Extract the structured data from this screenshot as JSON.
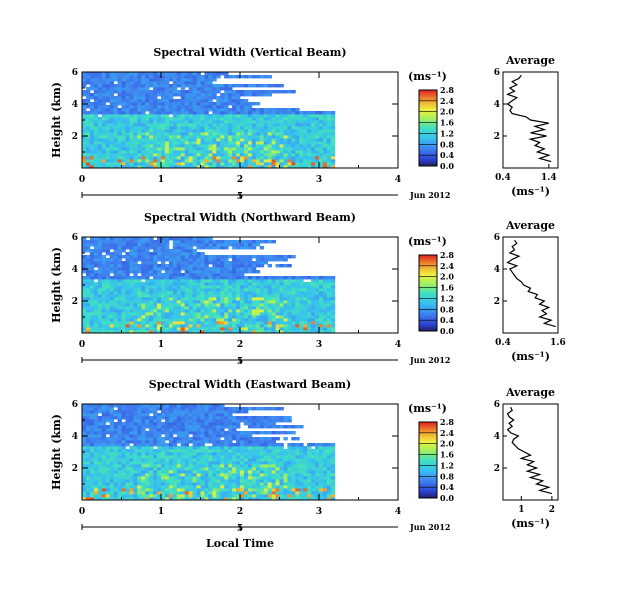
{
  "figure": {
    "x_axis_label": "Local Time",
    "date_label": "Jun 2012",
    "day_label": "5",
    "unit_label": "(ms⁻¹)",
    "average_title": "Average"
  },
  "chart_data": [
    {
      "type": "heatmap",
      "title": "Spectral Width (Vertical Beam)",
      "ylabel": "Height (km)",
      "xlabel": "Local Time",
      "xlim": [
        0,
        4
      ],
      "ylim": [
        0,
        6
      ],
      "x_ticks": [
        "0",
        "1",
        "2",
        "3",
        "4"
      ],
      "y_ticks": [
        "2",
        "4",
        "6"
      ],
      "colorbar": {
        "label": "(ms⁻¹)",
        "ticks": [
          "2.8",
          "2.4",
          "2.0",
          "1.6",
          "1.2",
          "0.8",
          "0.4",
          "0.0"
        ],
        "range": [
          0,
          2.8
        ]
      },
      "data_extent_hours": [
        0,
        3.2
      ],
      "profile": {
        "title": "Average",
        "xlabel": "(ms⁻¹)",
        "x_ticks": [
          "0.4",
          "1.4"
        ],
        "xlim": [
          0.4,
          1.6
        ],
        "y_ticks": [
          "2",
          "4",
          "6"
        ],
        "ylim": [
          0,
          6
        ],
        "heights": [
          0.4,
          0.6,
          0.8,
          1.0,
          1.2,
          1.4,
          1.6,
          1.8,
          2.0,
          2.2,
          2.4,
          2.6,
          2.8,
          3.0,
          3.2,
          3.4,
          3.6,
          3.8,
          4.0,
          4.2,
          4.4,
          4.6,
          4.8,
          5.0,
          5.2,
          5.4,
          5.6,
          5.8
        ],
        "values": [
          1.45,
          1.2,
          1.4,
          1.15,
          1.3,
          1.1,
          1.2,
          1.0,
          1.35,
          1.0,
          1.3,
          1.1,
          1.4,
          1.0,
          0.9,
          0.6,
          0.55,
          0.6,
          0.5,
          0.6,
          0.7,
          0.5,
          0.65,
          0.55,
          0.7,
          0.6,
          0.75,
          0.8
        ]
      }
    },
    {
      "type": "heatmap",
      "title": "Spectral Width (Northward Beam)",
      "ylabel": "Height (km)",
      "xlabel": "Local Time",
      "xlim": [
        0,
        4
      ],
      "ylim": [
        0,
        6
      ],
      "x_ticks": [
        "0",
        "1",
        "2",
        "3",
        "4"
      ],
      "y_ticks": [
        "2",
        "4",
        "6"
      ],
      "colorbar": {
        "label": "(ms⁻¹)",
        "ticks": [
          "2.8",
          "2.4",
          "2.0",
          "1.6",
          "1.2",
          "0.8",
          "0.4",
          "0.0"
        ],
        "range": [
          0,
          2.8
        ]
      },
      "data_extent_hours": [
        0,
        3.2
      ],
      "profile": {
        "title": "Average",
        "xlabel": "(ms⁻¹)",
        "x_ticks": [
          "0.4",
          "1.6"
        ],
        "xlim": [
          0.4,
          1.6
        ],
        "y_ticks": [
          "2",
          "4",
          "6"
        ],
        "ylim": [
          0,
          6
        ],
        "heights": [
          0.4,
          0.6,
          0.8,
          1.0,
          1.2,
          1.4,
          1.6,
          1.8,
          2.0,
          2.2,
          2.4,
          2.6,
          2.8,
          3.0,
          3.2,
          3.4,
          3.6,
          3.8,
          4.0,
          4.2,
          4.4,
          4.6,
          4.8,
          5.0,
          5.2,
          5.4,
          5.6,
          5.8
        ],
        "values": [
          1.55,
          1.3,
          1.45,
          1.2,
          1.35,
          1.25,
          1.4,
          1.2,
          1.3,
          1.1,
          1.15,
          0.95,
          1.0,
          0.85,
          0.8,
          0.7,
          0.65,
          0.6,
          0.55,
          0.7,
          0.5,
          0.6,
          0.75,
          0.55,
          0.65,
          0.6,
          0.7,
          0.65
        ]
      }
    },
    {
      "type": "heatmap",
      "title": "Spectral Width (Eastward Beam)",
      "ylabel": "Height (km)",
      "xlabel": "Local Time",
      "xlim": [
        0,
        4
      ],
      "ylim": [
        0,
        6
      ],
      "x_ticks": [
        "0",
        "1",
        "2",
        "3",
        "4"
      ],
      "y_ticks": [
        "2",
        "4",
        "6"
      ],
      "colorbar": {
        "label": "(ms⁻¹)",
        "ticks": [
          "2.8",
          "2.4",
          "2.0",
          "1.6",
          "1.2",
          "0.8",
          "0.4",
          "0.0"
        ],
        "range": [
          0,
          2.8
        ]
      },
      "data_extent_hours": [
        0,
        3.2
      ],
      "profile": {
        "title": "Average",
        "xlabel": "(ms⁻¹)",
        "x_ticks": [
          "1",
          "2"
        ],
        "xlim": [
          0.4,
          2.2
        ],
        "y_ticks": [
          "2",
          "4",
          "6"
        ],
        "ylim": [
          0,
          6
        ],
        "heights": [
          0.4,
          0.6,
          0.8,
          1.0,
          1.2,
          1.4,
          1.6,
          1.8,
          2.0,
          2.2,
          2.4,
          2.6,
          2.8,
          3.0,
          3.2,
          3.4,
          3.6,
          3.8,
          4.0,
          4.2,
          4.4,
          4.6,
          4.8,
          5.0,
          5.2,
          5.4,
          5.6,
          5.8
        ],
        "values": [
          2.0,
          1.6,
          1.9,
          1.5,
          1.7,
          1.3,
          1.6,
          1.2,
          1.5,
          1.2,
          1.4,
          1.0,
          1.3,
          1.1,
          0.9,
          0.8,
          0.7,
          0.75,
          0.9,
          0.65,
          0.55,
          0.7,
          0.6,
          0.75,
          0.6,
          0.55,
          0.7,
          0.65
        ]
      }
    }
  ]
}
